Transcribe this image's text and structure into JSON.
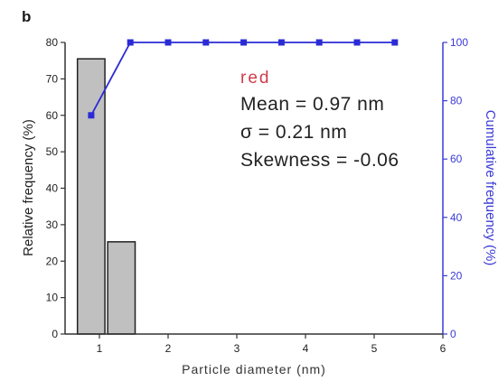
{
  "panel_label": "b",
  "chart_data": {
    "type": "bar",
    "title": "",
    "xlabel": "Particle diameter (nm)",
    "ylabel": "Relative frequency (%)",
    "y2label": "Cumulative frequency (%)",
    "xlim": [
      0.5,
      6
    ],
    "ylim": [
      0,
      80
    ],
    "y2lim": [
      0,
      100
    ],
    "x_ticks": [
      1,
      2,
      3,
      4,
      5,
      6
    ],
    "y_ticks": [
      0,
      10,
      20,
      30,
      40,
      50,
      60,
      70,
      80
    ],
    "y2_ticks": [
      0,
      20,
      40,
      60,
      80,
      100
    ],
    "bin_width": 0.4,
    "series": [
      {
        "kind": "bar",
        "axis": "left",
        "centers": [
          0.88,
          1.32
        ],
        "values": [
          75.5,
          25.3
        ],
        "color": "#c0c0c0",
        "edge_color": "#222222"
      },
      {
        "kind": "line",
        "axis": "right",
        "x": [
          0.88,
          1.45,
          2.0,
          2.55,
          3.1,
          3.65,
          4.2,
          4.75,
          5.3
        ],
        "values": [
          75,
          100,
          100,
          100,
          100,
          100,
          100,
          100,
          100
        ],
        "color": "#2b2bd6"
      }
    ],
    "annotations": {
      "sample": "red",
      "sample_color": "#d23b4a",
      "lines": [
        "Mean = 0.97 nm",
        "σ = 0.21 nm",
        "Skewness = -0.06"
      ]
    },
    "grid": false
  }
}
